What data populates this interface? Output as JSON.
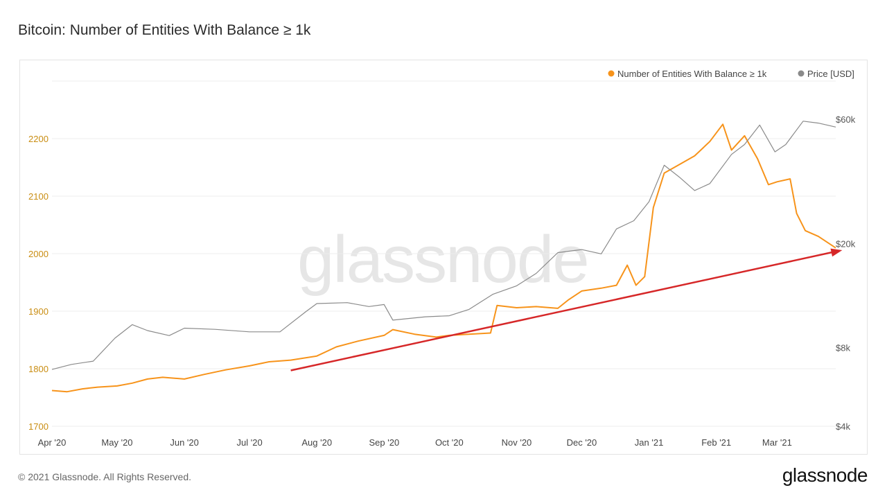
{
  "page": {
    "title": "Bitcoin: Number of Entities With Balance ≥ 1k",
    "copyright": "© 2021 Glassnode. All Rights Reserved.",
    "logo_text": "glassnode",
    "watermark_text": "glassnode"
  },
  "colors": {
    "entities": "#f7931a",
    "price": "#8a8a8a",
    "trend_arrow": "#d62728",
    "grid": "#ececec",
    "left_axis_text": "#c98d12"
  },
  "chart_data": {
    "type": "line",
    "title": "Bitcoin: Number of Entities With Balance ≥ 1k",
    "x_start": "2020-04-01",
    "x_end": "2021-03-28",
    "x_ticks": [
      {
        "date": "2020-04-01",
        "label": "Apr '20"
      },
      {
        "date": "2020-05-01",
        "label": "May '20"
      },
      {
        "date": "2020-06-01",
        "label": "Jun '20"
      },
      {
        "date": "2020-07-01",
        "label": "Jul '20"
      },
      {
        "date": "2020-08-01",
        "label": "Aug '20"
      },
      {
        "date": "2020-09-01",
        "label": "Sep '20"
      },
      {
        "date": "2020-10-01",
        "label": "Oct '20"
      },
      {
        "date": "2020-11-01",
        "label": "Nov '20"
      },
      {
        "date": "2020-12-01",
        "label": "Dec '20"
      },
      {
        "date": "2021-01-01",
        "label": "Jan '21"
      },
      {
        "date": "2021-02-01",
        "label": "Feb '21"
      },
      {
        "date": "2021-03-01",
        "label": "Mar '21"
      }
    ],
    "y_left": {
      "min": 1700,
      "max": 2200,
      "ticks": [
        1700,
        1800,
        1900,
        2000,
        2100,
        2200
      ],
      "ylim": [
        1700,
        2300
      ]
    },
    "y_right": {
      "scale": "log",
      "ticks": [
        4000,
        8000,
        20000,
        60000
      ],
      "tick_labels": [
        "$4k",
        "$8k",
        "$20k",
        "$60k"
      ],
      "ylim": [
        4000,
        84000
      ]
    },
    "legend_position": "top-right",
    "grid": true,
    "series": [
      {
        "name": "Number of Entities With Balance ≥ 1k",
        "axis": "left",
        "color": "#f7931a",
        "x": [
          "2020-04-01",
          "2020-04-08",
          "2020-04-15",
          "2020-04-22",
          "2020-05-01",
          "2020-05-08",
          "2020-05-15",
          "2020-05-22",
          "2020-06-01",
          "2020-06-10",
          "2020-06-20",
          "2020-07-01",
          "2020-07-10",
          "2020-07-20",
          "2020-08-01",
          "2020-08-10",
          "2020-08-20",
          "2020-09-01",
          "2020-09-05",
          "2020-09-15",
          "2020-09-25",
          "2020-10-01",
          "2020-10-10",
          "2020-10-20",
          "2020-10-23",
          "2020-11-01",
          "2020-11-10",
          "2020-11-20",
          "2020-11-25",
          "2020-12-01",
          "2020-12-10",
          "2020-12-17",
          "2020-12-22",
          "2020-12-26",
          "2020-12-30",
          "2021-01-03",
          "2021-01-08",
          "2021-01-15",
          "2021-01-22",
          "2021-01-29",
          "2021-02-04",
          "2021-02-08",
          "2021-02-14",
          "2021-02-20",
          "2021-02-25",
          "2021-03-01",
          "2021-03-07",
          "2021-03-10",
          "2021-03-14",
          "2021-03-20",
          "2021-03-28"
        ],
        "values": [
          1762,
          1760,
          1765,
          1768,
          1770,
          1775,
          1782,
          1785,
          1782,
          1790,
          1798,
          1805,
          1812,
          1815,
          1822,
          1838,
          1848,
          1858,
          1868,
          1860,
          1855,
          1858,
          1860,
          1862,
          1910,
          1906,
          1908,
          1905,
          1920,
          1935,
          1940,
          1945,
          1980,
          1945,
          1960,
          2080,
          2140,
          2155,
          2170,
          2195,
          2225,
          2180,
          2205,
          2165,
          2120,
          2125,
          2130,
          2070,
          2040,
          2030,
          2010
        ]
      },
      {
        "name": "Price [USD]",
        "axis": "right",
        "color": "#8a8a8a",
        "x": [
          "2020-04-01",
          "2020-04-10",
          "2020-04-20",
          "2020-04-30",
          "2020-05-08",
          "2020-05-15",
          "2020-05-25",
          "2020-06-01",
          "2020-06-15",
          "2020-07-01",
          "2020-07-15",
          "2020-07-27",
          "2020-08-01",
          "2020-08-15",
          "2020-08-25",
          "2020-09-01",
          "2020-09-05",
          "2020-09-20",
          "2020-10-01",
          "2020-10-10",
          "2020-10-21",
          "2020-11-01",
          "2020-11-10",
          "2020-11-20",
          "2020-12-01",
          "2020-12-10",
          "2020-12-17",
          "2020-12-25",
          "2021-01-01",
          "2021-01-08",
          "2021-01-15",
          "2021-01-22",
          "2021-01-29",
          "2021-02-08",
          "2021-02-14",
          "2021-02-21",
          "2021-02-28",
          "2021-03-05",
          "2021-03-13",
          "2021-03-20",
          "2021-03-28"
        ],
        "values": [
          6600,
          6900,
          7100,
          8700,
          9800,
          9300,
          8900,
          9500,
          9400,
          9200,
          9200,
          11000,
          11800,
          11900,
          11500,
          11700,
          10200,
          10500,
          10600,
          11200,
          12800,
          13800,
          15400,
          18500,
          19000,
          18300,
          22800,
          24500,
          29000,
          40000,
          36000,
          32000,
          34000,
          44000,
          48000,
          57000,
          45000,
          48000,
          59000,
          58000,
          56000
        ]
      }
    ],
    "annotation": {
      "type": "arrow",
      "color": "#d62728",
      "from": {
        "date": "2020-07-20",
        "value": 1797
      },
      "to": {
        "date": "2021-03-31",
        "value": 2006
      }
    }
  }
}
